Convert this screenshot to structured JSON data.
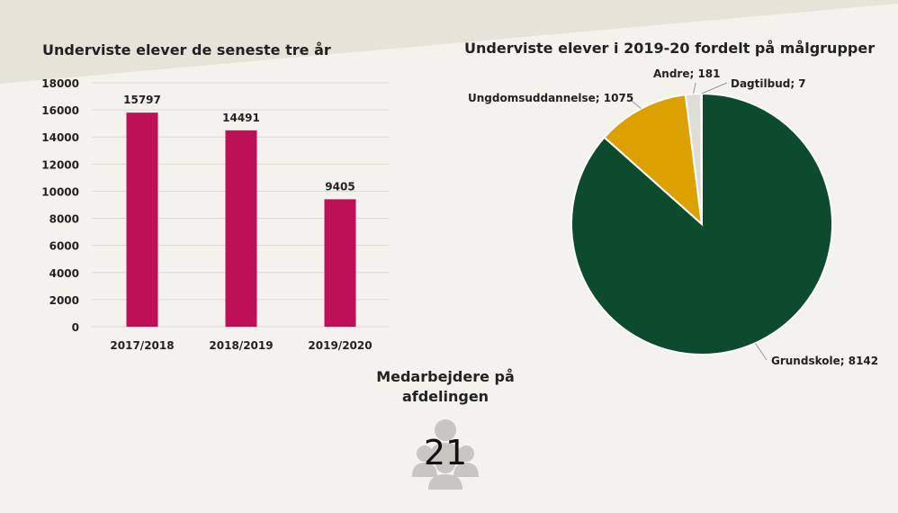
{
  "colors": {
    "background": "#f3f2ec",
    "banner": "#e6e4d8",
    "bar": "#be1057",
    "grid": "#d9d8d2",
    "icon": "#c7c6c0"
  },
  "chart_data": [
    {
      "type": "bar",
      "title": "Underviste elever de seneste tre år",
      "categories": [
        "2017/2018",
        "2018/2019",
        "2019/2020"
      ],
      "values": [
        15797,
        14491,
        9405
      ],
      "ylim": [
        0,
        18000
      ],
      "yticks": [
        0,
        2000,
        4000,
        6000,
        8000,
        10000,
        12000,
        14000,
        16000,
        18000
      ],
      "grid": true,
      "data_labels": true,
      "legend": "none"
    },
    {
      "type": "pie",
      "title": "Underviste elever i 2019-20 fordelt på målgrupper",
      "slices": [
        {
          "label": "Grundskole; 8142",
          "value": 8142,
          "color": "#0d4b2f"
        },
        {
          "label": "Ungdomsuddannelse; 1075",
          "value": 1075,
          "color": "#dca100"
        },
        {
          "label": "Andre; 181",
          "value": 181,
          "color": "#dedcd4"
        },
        {
          "label": "Dagtilbud; 7",
          "value": 7,
          "color": "#9aa3a0"
        }
      ],
      "legend": "none"
    }
  ],
  "staff": {
    "label": "Medarbejdere på afdelingen",
    "count": "21",
    "icon": "people-group-icon"
  }
}
